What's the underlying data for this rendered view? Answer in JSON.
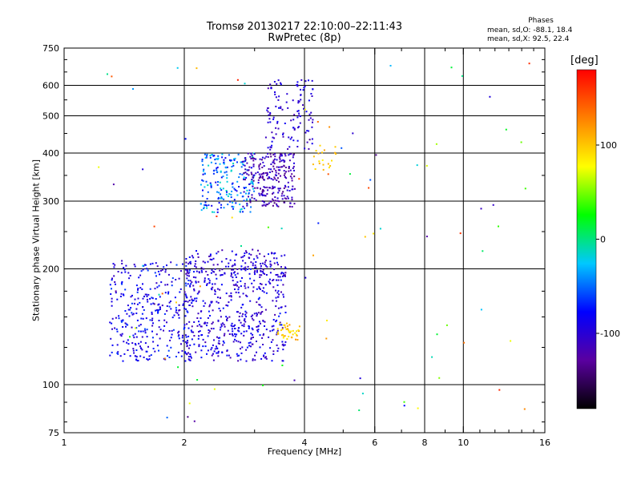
{
  "title": "Tromsø 20130217 22:10:00–22:11:43",
  "subtitle": "RwPretec (8p)",
  "phases": {
    "title": "Phases",
    "o_stats": "mean, sd,O: -88.1, 18.4",
    "x_stats": "mean, sd,X: 92.5, 22.4"
  },
  "chart_data": {
    "type": "scatter",
    "xlabel": "Frequency [MHz]",
    "ylabel": "Stationary phase Virtual Height [km]",
    "x_scale": "log",
    "y_scale": "log",
    "xlim": [
      1,
      16
    ],
    "ylim": [
      75,
      750
    ],
    "x_ticks": [
      1,
      2,
      4,
      6,
      8,
      10,
      16
    ],
    "y_ticks": [
      75,
      100,
      200,
      300,
      400,
      500,
      600,
      750
    ],
    "grid": true,
    "colorbar": {
      "unit": "[deg]",
      "range": [
        -180,
        180
      ],
      "ticks": [
        100,
        0,
        -100
      ],
      "colormap": [
        "#000000",
        "#5a00a0",
        "#0000ff",
        "#00c8ff",
        "#00ff00",
        "#ffff00",
        "#ff8000",
        "#ff0000"
      ]
    },
    "clusters": [
      {
        "name": "",
        "f_range": [
          1.3,
          2.1
        ],
        "h_range": [
          115,
          210
        ],
        "count": 340,
        "phase": [
          -110,
          -60
        ]
      },
      {
        "name": "",
        "f_range": [
          2.0,
          3.6
        ],
        "h_range": [
          115,
          220
        ],
        "count": 520,
        "phase": [
          -120,
          -70
        ]
      },
      {
        "name": "",
        "f_range": [
          2.0,
          3.6
        ],
        "h_range": [
          190,
          225
        ],
        "count": 90,
        "phase": [
          -120,
          -80
        ]
      },
      {
        "name": "",
        "f_range": [
          2.2,
          3.0
        ],
        "h_range": [
          280,
          400
        ],
        "count": 200,
        "phase": [
          -90,
          -10
        ]
      },
      {
        "name": "",
        "f_range": [
          2.8,
          3.8
        ],
        "h_range": [
          290,
          400
        ],
        "count": 260,
        "phase": [
          -140,
          -90
        ]
      },
      {
        "name": "",
        "f_range": [
          3.2,
          4.2
        ],
        "h_range": [
          400,
          620
        ],
        "count": 120,
        "phase": [
          -120,
          -80
        ]
      },
      {
        "name": "",
        "f_range": [
          3.4,
          3.9
        ],
        "h_range": [
          130,
          145
        ],
        "count": 40,
        "phase": [
          80,
          120
        ]
      },
      {
        "name": "",
        "f_range": [
          4.2,
          4.8
        ],
        "h_range": [
          360,
          420
        ],
        "count": 20,
        "phase": [
          80,
          120
        ]
      },
      {
        "name": "",
        "f_range": [
          1.2,
          15
        ],
        "h_range": [
          80,
          700
        ],
        "count": 90,
        "phase": [
          -140,
          170
        ]
      }
    ]
  }
}
